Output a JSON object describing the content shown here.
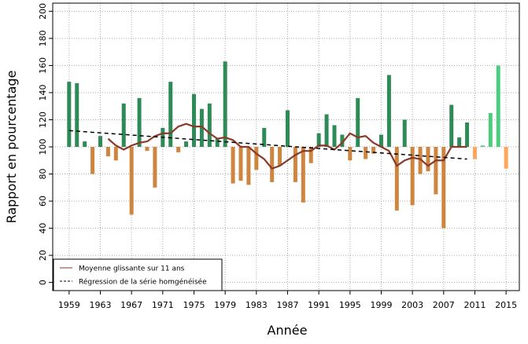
{
  "chart_data": {
    "type": "bar",
    "xlabel": "Année",
    "ylabel": "Rapport en pourcentage",
    "baseline": 100,
    "x": [
      1959,
      1960,
      1961,
      1962,
      1963,
      1964,
      1965,
      1966,
      1967,
      1968,
      1969,
      1970,
      1971,
      1972,
      1973,
      1974,
      1975,
      1976,
      1977,
      1978,
      1979,
      1980,
      1981,
      1982,
      1983,
      1984,
      1985,
      1986,
      1987,
      1988,
      1989,
      1990,
      1991,
      1992,
      1993,
      1994,
      1995,
      1996,
      1997,
      1998,
      1999,
      2000,
      2001,
      2002,
      2003,
      2004,
      2005,
      2006,
      2007,
      2008,
      2009,
      2010,
      2011,
      2012,
      2013,
      2014,
      2015
    ],
    "values": [
      148,
      147,
      104,
      80,
      108,
      93,
      90,
      132,
      50,
      136,
      97,
      70,
      114,
      148,
      96,
      104,
      139,
      128,
      132,
      106,
      163,
      73,
      75,
      72,
      83,
      114,
      74,
      86,
      127,
      74,
      59,
      88,
      110,
      124,
      116,
      109,
      90,
      136,
      91,
      95,
      109,
      153,
      53,
      120,
      57,
      80,
      82,
      65,
      40,
      131,
      107,
      118,
      91,
      101,
      125,
      160,
      84
    ],
    "colors": [
      "#2e8b57",
      "#2e8b57",
      "#2e8b57",
      "#cd853f",
      "#2e8b57",
      "#cd853f",
      "#cd853f",
      "#2e8b57",
      "#cd853f",
      "#2e8b57",
      "#cd853f",
      "#cd853f",
      "#2e8b57",
      "#2e8b57",
      "#cd853f",
      "#2e8b57",
      "#2e8b57",
      "#2e8b57",
      "#2e8b57",
      "#2e8b57",
      "#2e8b57",
      "#cd853f",
      "#cd853f",
      "#cd853f",
      "#cd853f",
      "#2e8b57",
      "#cd853f",
      "#cd853f",
      "#2e8b57",
      "#cd853f",
      "#cd853f",
      "#cd853f",
      "#2e8b57",
      "#2e8b57",
      "#2e8b57",
      "#2e8b57",
      "#cd853f",
      "#2e8b57",
      "#cd853f",
      "#cd853f",
      "#2e8b57",
      "#2e8b57",
      "#cd853f",
      "#2e8b57",
      "#cd853f",
      "#cd853f",
      "#cd853f",
      "#cd853f",
      "#cd853f",
      "#2e8b57",
      "#2e8b57",
      "#2e8b57",
      "#ffa55c",
      "#4ccc7f",
      "#4ccc7f",
      "#4ccc7f",
      "#ffa55c"
    ],
    "lines": [
      {
        "name": "Moyenne glissante sur 11 ans",
        "color": "#8b3a2a",
        "dash": false,
        "x": [
          1964,
          1965,
          1966,
          1967,
          1968,
          1969,
          1970,
          1971,
          1972,
          1973,
          1974,
          1975,
          1976,
          1977,
          1978,
          1979,
          1980,
          1981,
          1982,
          1983,
          1984,
          1985,
          1986,
          1987,
          1988,
          1989,
          1990,
          1991,
          1992,
          1993,
          1994,
          1995,
          1996,
          1997,
          1998,
          1999,
          2000,
          2001,
          2002,
          2003,
          2004,
          2005,
          2006,
          2007,
          2008,
          2009,
          2010
        ],
        "values": [
          106,
          101,
          98,
          101,
          103,
          104,
          108,
          110,
          110,
          115,
          117,
          115,
          115,
          110,
          106,
          107,
          105,
          100,
          100,
          95,
          91,
          84,
          86,
          90,
          94,
          97,
          97,
          101,
          101,
          98,
          103,
          110,
          107,
          108,
          103,
          100,
          97,
          86,
          90,
          92,
          91,
          86,
          90,
          90,
          100,
          100,
          100
        ]
      },
      {
        "name": "Régression de la série homgénéisée",
        "color": "#000000",
        "dash": true,
        "x": [
          1959,
          2010
        ],
        "values": [
          112,
          91
        ]
      }
    ],
    "xlim": [
      1956.9,
      2016.7
    ],
    "ylim": [
      -6,
      206
    ],
    "xticks": [
      1959,
      1963,
      1967,
      1971,
      1975,
      1979,
      1983,
      1987,
      1991,
      1995,
      1999,
      2003,
      2007,
      2011,
      2015
    ],
    "yticks": [
      0,
      20,
      40,
      60,
      80,
      100,
      120,
      140,
      160,
      180,
      200
    ],
    "grid": true,
    "legend": "bottom-left"
  }
}
